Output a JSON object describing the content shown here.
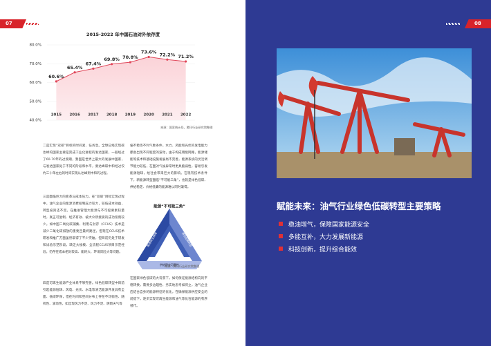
{
  "left_page": {
    "page_number": "07",
    "paragraphs": [
      "二是实现“双碳”目标的时间紧、任务急。全球已经实现碳达峰的国家主要是完成工业化进程的发达国家，一般经过了60-70年的过渡期，我国是世界上最大的发展中国家，与发达国家处于不同的阶段和水平，要达峰碳中和经过仅约三十年左右的时间实现从达峰到中和的过程。",
      "三是面临巨大的变革与成本压力。在“双碳”目标实现过程中，油气企业的能源消费控制压力较大，较低成本效益，转型投资还不足。在推进管理大能源与不可控要素较量时，真正可复制、经济有效、被大众所接受的成功案例较少。如中国二氧化碳捕集、利用与封存（CCUS）技术是减少二氧化碳排放的重要且最终路径，但现在CCUS技术研发和推广方面虽然取得了不少突破，但目前仍处于研发和试验示范阶段，缺乏大规模、全流程CCUS项目示范经验，仍存在成本相对较高、能耗大、环境风险大等问题。",
      "四是可再生能源产业体系不够完善。绿色低碳转型中目前引起能源短缺、风电、光伏、水电等清洁能源开发具有全面、低碳环保，但在时间和空间分布上存在不均衡性、随机性、波动性，如出现风力不足、风力不足、阴雨天气等",
      "偏不稳等不利气象条件，水力、风能和光伏的发电能力都会出现不同程度的波动，由于构成用能网路，能源储能等技术和基础设施发展尚不完善，能源系统的灵活调节能力较低，在面对气候异常时更具脆弱性，容易引发能源短缺，给社会带来巨大的影响。在现有技术条件下，新能源转型面临“不可能三角”，也就是绿色低碳、供给稳定、价格低廉的能源难以同时兼得。",
      "在国家绿色低碳的大背景下，如何保证能源结构向的平稳转换，需要多边理性、务实地思考如何立，油气企业应结合自身的能源特征的优化，在确保能源供应安全的前提下，逐步实现可再生能源和油气等化石能源的有序替代。"
    ],
    "diagram": {
      "title": "能源“不可能三角”",
      "labels": [
        "能源安全保障",
        "清洁低碳转型",
        "供给稳定可靠性"
      ],
      "source": "来源：腾讯行业研究院整理"
    }
  },
  "chart_data": {
    "type": "line",
    "title": "2015-2022 年中国石油对外依存度",
    "categories": [
      "2015",
      "2016",
      "2017",
      "2018",
      "2019",
      "2020",
      "2021",
      "2022"
    ],
    "values": [
      60.6,
      65.4,
      67.4,
      69.8,
      70.8,
      73.6,
      72.2,
      71.2
    ],
    "value_labels": [
      "60.6%",
      "65.4%",
      "67.4%",
      "69.8%",
      "70.8%",
      "73.6%",
      "72.2%",
      "71.2%"
    ],
    "color": "#e0475a",
    "ylim": [
      40,
      80
    ],
    "yticks": [
      {
        "value": 40,
        "label": "40.0%"
      },
      {
        "value": 50,
        "label": "50.0%"
      },
      {
        "value": 60,
        "label": "60.0%"
      },
      {
        "value": 70,
        "label": "70.0%"
      },
      {
        "value": 80,
        "label": "80.0%"
      }
    ],
    "grid": true,
    "source": "来源：国家统计局，腾讯行业研究院整理"
  },
  "right_page": {
    "page_number": "08",
    "heading": "赋能未来：油气行业绿色低碳转型主要策略",
    "strategies": [
      "稳油增气，保障国家能源安全",
      "多能互补，大力发展新能源",
      "科技创新，提升综合能效"
    ]
  }
}
